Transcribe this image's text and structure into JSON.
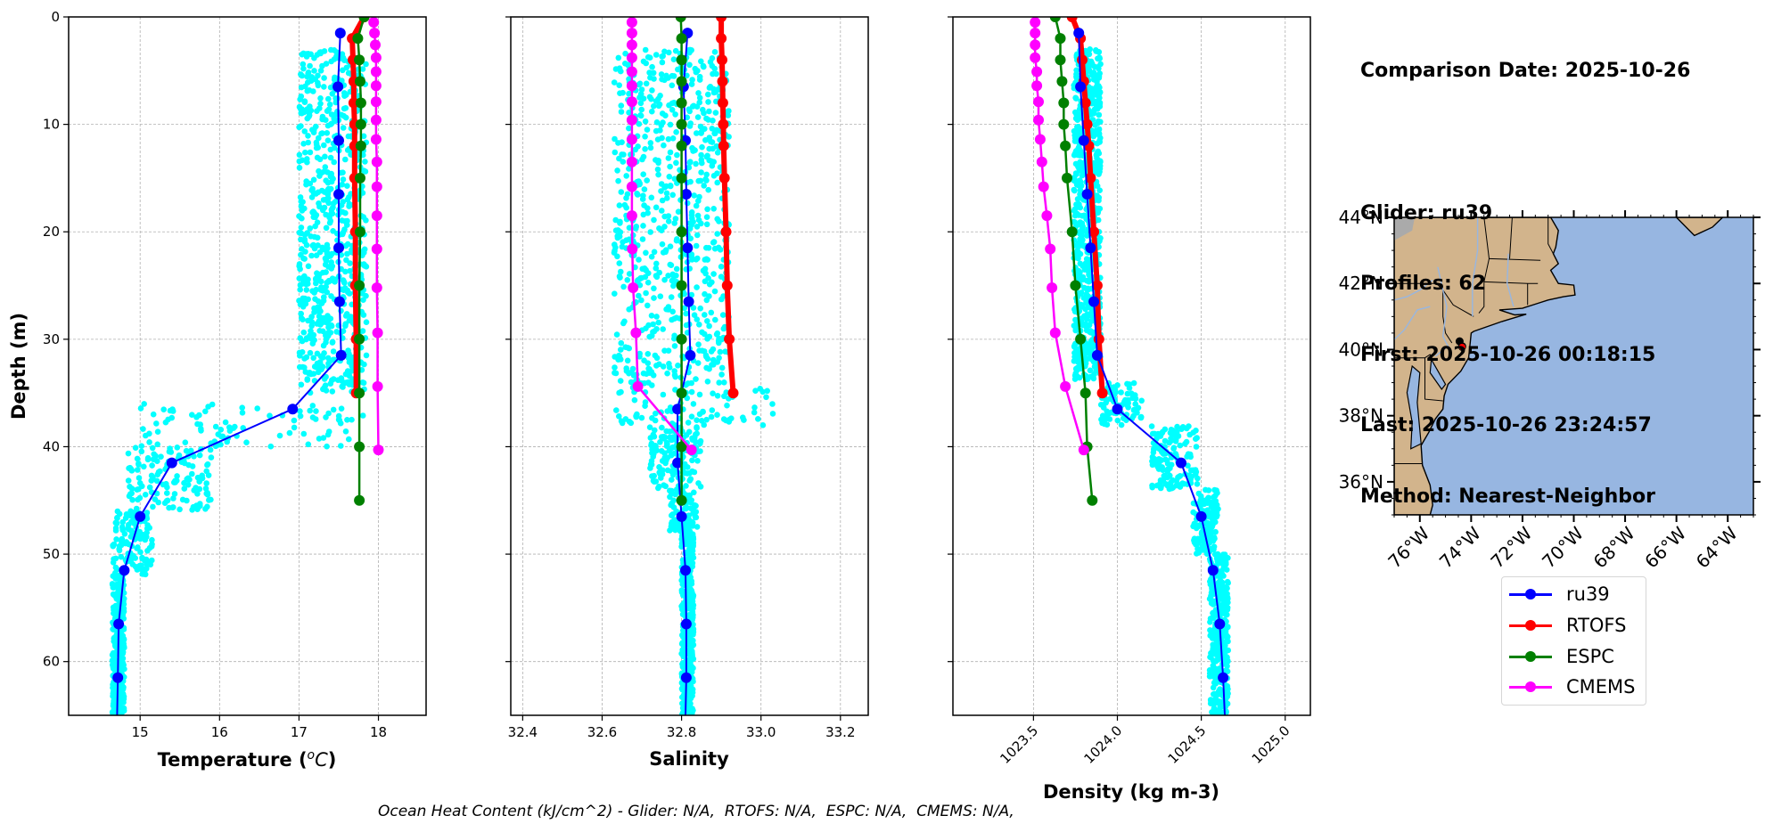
{
  "info": {
    "comparison_date": "Comparison Date: 2025-10-26",
    "glider": "Glider: ru39",
    "profiles": "Profiles: 62",
    "first": "First: 2025-10-26 00:18:15",
    "last": "Last: 2025-10-26 23:24:57",
    "method": "Method: Nearest-Neighbor"
  },
  "footer": {
    "ohc": "Ocean Heat Content (kJ/cm^2) - Glider: N/A,  RTOFS: N/A,  ESPC: N/A,  CMEMS: N/A,"
  },
  "legend": [
    {
      "label": "ru39",
      "color": "#0000ff"
    },
    {
      "label": "RTOFS",
      "color": "#ff0000"
    },
    {
      "label": "ESPC",
      "color": "#008000"
    },
    {
      "label": "CMEMS",
      "color": "#ff00ff"
    }
  ],
  "colors": {
    "glider_scatter": "#00ffff",
    "ru39": "#0000ff",
    "RTOFS": "#ff0000",
    "ESPC": "#008000",
    "CMEMS": "#ff00ff",
    "land": "#d2b48c",
    "ocean": "#97b6e1",
    "grid": "#b0b0b0"
  },
  "chart_data": [
    {
      "type": "line",
      "title": "",
      "xlabel": "Temperature (°C)",
      "ylabel": "Depth (m)",
      "xlim": [
        14.1,
        18.6
      ],
      "ylim": [
        65,
        0
      ],
      "xticks": [
        15,
        16,
        17,
        18
      ],
      "yticks": [
        0,
        10,
        20,
        30,
        40,
        50,
        60
      ],
      "grid": true,
      "scatter_envelope": {
        "name": "ru39 profiles",
        "bands": [
          {
            "depth": [
              3,
              35
            ],
            "min": 17.0,
            "max": 17.85
          },
          {
            "depth": [
              36,
              40
            ],
            "min": 15.0,
            "max": 17.9
          },
          {
            "depth": [
              40,
              46
            ],
            "min": 14.85,
            "max": 15.9
          },
          {
            "depth": [
              46,
              52
            ],
            "min": 14.65,
            "max": 15.15
          },
          {
            "depth": [
              52,
              65
            ],
            "min": 14.65,
            "max": 14.8
          }
        ]
      },
      "series": [
        {
          "name": "ru39",
          "depth": [
            1.5,
            6.5,
            11.5,
            16.5,
            21.5,
            26.5,
            31.5,
            36.5,
            41.5,
            46.5,
            51.5,
            56.5,
            61.5,
            65
          ],
          "values": [
            17.52,
            17.49,
            17.5,
            17.5,
            17.5,
            17.51,
            17.53,
            16.92,
            15.4,
            15.0,
            14.8,
            14.73,
            14.72,
            14.71
          ],
          "markers_upto": 13
        },
        {
          "name": "RTOFS",
          "depth": [
            0,
            2,
            4,
            6,
            8,
            10,
            12,
            15,
            20,
            25,
            30,
            35
          ],
          "values": [
            17.82,
            17.67,
            17.68,
            17.69,
            17.69,
            17.7,
            17.7,
            17.7,
            17.71,
            17.71,
            17.72,
            17.72
          ]
        },
        {
          "name": "ESPC",
          "depth": [
            0,
            2,
            4,
            6,
            8,
            10,
            12,
            15,
            20,
            25,
            30,
            35,
            40,
            45
          ],
          "values": [
            17.82,
            17.74,
            17.76,
            17.77,
            17.78,
            17.78,
            17.78,
            17.77,
            17.77,
            17.76,
            17.76,
            17.76,
            17.76,
            17.76
          ]
        },
        {
          "name": "CMEMS",
          "depth": [
            0.5,
            1.5,
            2.6,
            3.8,
            5.1,
            6.4,
            7.9,
            9.6,
            11.4,
            13.5,
            15.8,
            18.5,
            21.6,
            25.2,
            29.4,
            34.4,
            40.3
          ],
          "values": [
            17.94,
            17.95,
            17.96,
            17.97,
            17.97,
            17.97,
            17.97,
            17.97,
            17.97,
            17.98,
            17.98,
            17.98,
            17.98,
            17.98,
            17.99,
            17.99,
            18.0
          ]
        }
      ]
    },
    {
      "type": "line",
      "title": "",
      "xlabel": "Salinity",
      "ylabel": "",
      "xlim": [
        32.37,
        33.27
      ],
      "ylim": [
        65,
        0
      ],
      "xticks": [
        32.4,
        32.6,
        32.8,
        33.0,
        33.2
      ],
      "xtick_labels": [
        "32.4",
        "32.6",
        "32.8",
        "33.0",
        "33.2"
      ],
      "yticks": [
        0,
        10,
        20,
        30,
        40,
        50,
        60
      ],
      "grid": true,
      "scatter_envelope": {
        "name": "ru39 profiles",
        "bands": [
          {
            "depth": [
              3,
              34
            ],
            "min": 32.63,
            "max": 32.92
          },
          {
            "depth": [
              34,
              38
            ],
            "min": 32.63,
            "max": 33.03
          },
          {
            "depth": [
              38,
              44
            ],
            "min": 32.72,
            "max": 32.85
          },
          {
            "depth": [
              44,
              48
            ],
            "min": 32.77,
            "max": 32.84
          },
          {
            "depth": [
              48,
              65
            ],
            "min": 32.8,
            "max": 32.83
          }
        ]
      },
      "series": [
        {
          "name": "ru39",
          "depth": [
            1.5,
            6.5,
            11.5,
            16.5,
            21.5,
            26.5,
            31.5,
            36.5,
            41.5,
            46.5,
            51.5,
            56.5,
            61.5,
            65
          ],
          "values": [
            32.815,
            32.805,
            32.81,
            32.812,
            32.815,
            32.818,
            32.822,
            32.79,
            32.79,
            32.8,
            32.81,
            32.812,
            32.812,
            32.81
          ],
          "markers_upto": 13
        },
        {
          "name": "RTOFS",
          "depth": [
            0,
            2,
            4,
            6,
            8,
            10,
            12,
            15,
            20,
            25,
            30,
            35
          ],
          "values": [
            32.9,
            32.9,
            32.902,
            32.903,
            32.904,
            32.905,
            32.906,
            32.908,
            32.912,
            32.915,
            32.92,
            32.93
          ]
        },
        {
          "name": "ESPC",
          "depth": [
            0,
            2,
            4,
            6,
            8,
            10,
            12,
            15,
            20,
            25,
            30,
            35,
            40,
            45
          ],
          "values": [
            32.798,
            32.8,
            32.8,
            32.8,
            32.8,
            32.8,
            32.8,
            32.8,
            32.8,
            32.8,
            32.8,
            32.8,
            32.8,
            32.8
          ]
        },
        {
          "name": "CMEMS",
          "depth": [
            0.5,
            1.5,
            2.6,
            3.8,
            5.1,
            6.4,
            7.9,
            9.6,
            11.4,
            13.5,
            15.8,
            18.5,
            21.6,
            25.2,
            29.4,
            34.4,
            40.3
          ],
          "values": [
            32.675,
            32.675,
            32.675,
            32.675,
            32.675,
            32.675,
            32.675,
            32.675,
            32.675,
            32.675,
            32.675,
            32.675,
            32.676,
            32.678,
            32.685,
            32.69,
            32.825
          ]
        }
      ]
    },
    {
      "type": "line",
      "title": "",
      "xlabel": "Density (kg m-3)",
      "ylabel": "",
      "xlim": [
        1023.02,
        1025.15
      ],
      "ylim": [
        65,
        0
      ],
      "xticks": [
        1023.5,
        1024.0,
        1024.5,
        1025.0
      ],
      "xtick_labels": [
        "1023.5",
        "1024.0",
        "1024.5",
        "1025.0"
      ],
      "yticks": [
        0,
        10,
        20,
        30,
        40,
        50,
        60
      ],
      "grid": true,
      "scatter_envelope": {
        "name": "ru39 profiles",
        "bands": [
          {
            "depth": [
              3,
              34
            ],
            "min": 1023.74,
            "max": 1023.9
          },
          {
            "depth": [
              34,
              38
            ],
            "min": 1023.9,
            "max": 1024.15
          },
          {
            "depth": [
              38,
              44
            ],
            "min": 1024.2,
            "max": 1024.48
          },
          {
            "depth": [
              44,
              50
            ],
            "min": 1024.45,
            "max": 1024.6
          },
          {
            "depth": [
              50,
              65
            ],
            "min": 1024.55,
            "max": 1024.66
          }
        ]
      },
      "series": [
        {
          "name": "ru39",
          "depth": [
            1.5,
            6.5,
            11.5,
            16.5,
            21.5,
            26.5,
            31.5,
            36.5,
            41.5,
            46.5,
            51.5,
            56.5,
            61.5,
            65
          ],
          "values": [
            1023.77,
            1023.78,
            1023.8,
            1023.82,
            1023.84,
            1023.86,
            1023.88,
            1024.0,
            1024.38,
            1024.5,
            1024.57,
            1024.61,
            1024.63,
            1024.64
          ],
          "markers_upto": 13
        },
        {
          "name": "RTOFS",
          "depth": [
            0,
            2,
            4,
            6,
            8,
            10,
            12,
            15,
            20,
            25,
            30,
            35
          ],
          "values": [
            1023.73,
            1023.78,
            1023.79,
            1023.8,
            1023.81,
            1023.82,
            1023.83,
            1023.84,
            1023.86,
            1023.88,
            1023.89,
            1023.91
          ]
        },
        {
          "name": "ESPC",
          "depth": [
            0,
            2,
            4,
            6,
            8,
            10,
            12,
            15,
            20,
            25,
            30,
            35,
            40,
            45
          ],
          "values": [
            1023.63,
            1023.66,
            1023.66,
            1023.67,
            1023.68,
            1023.68,
            1023.69,
            1023.7,
            1023.73,
            1023.75,
            1023.78,
            1023.81,
            1023.82,
            1023.85
          ]
        },
        {
          "name": "CMEMS",
          "depth": [
            0.5,
            1.5,
            2.6,
            3.8,
            5.1,
            6.4,
            7.9,
            9.6,
            11.4,
            13.5,
            15.8,
            18.5,
            21.6,
            25.2,
            29.4,
            34.4,
            40.3
          ],
          "values": [
            1023.51,
            1023.51,
            1023.51,
            1023.51,
            1023.52,
            1023.52,
            1023.53,
            1023.53,
            1023.54,
            1023.55,
            1023.56,
            1023.58,
            1023.6,
            1023.61,
            1023.63,
            1023.69,
            1023.8
          ]
        }
      ]
    },
    {
      "type": "map",
      "title": "",
      "lon_range": [
        -77,
        -63
      ],
      "lat_range": [
        35,
        44
      ],
      "lon_ticks": [
        -76,
        -74,
        -72,
        -70,
        -68,
        -66,
        -64
      ],
      "lon_tick_labels": [
        "76°W",
        "74°W",
        "72°W",
        "70°W",
        "68°W",
        "66°W",
        "64°W"
      ],
      "lat_ticks": [
        36,
        38,
        40,
        42,
        44
      ],
      "lat_tick_labels": [
        "36°N",
        "38°N",
        "40°N",
        "42°N",
        "44°N"
      ],
      "glider_track": {
        "lon": [
          -74.45,
          -74.35
        ],
        "lat": [
          40.25,
          40.1
        ]
      },
      "glider_position": {
        "lon": -74.35,
        "lat": 40.08
      }
    }
  ]
}
